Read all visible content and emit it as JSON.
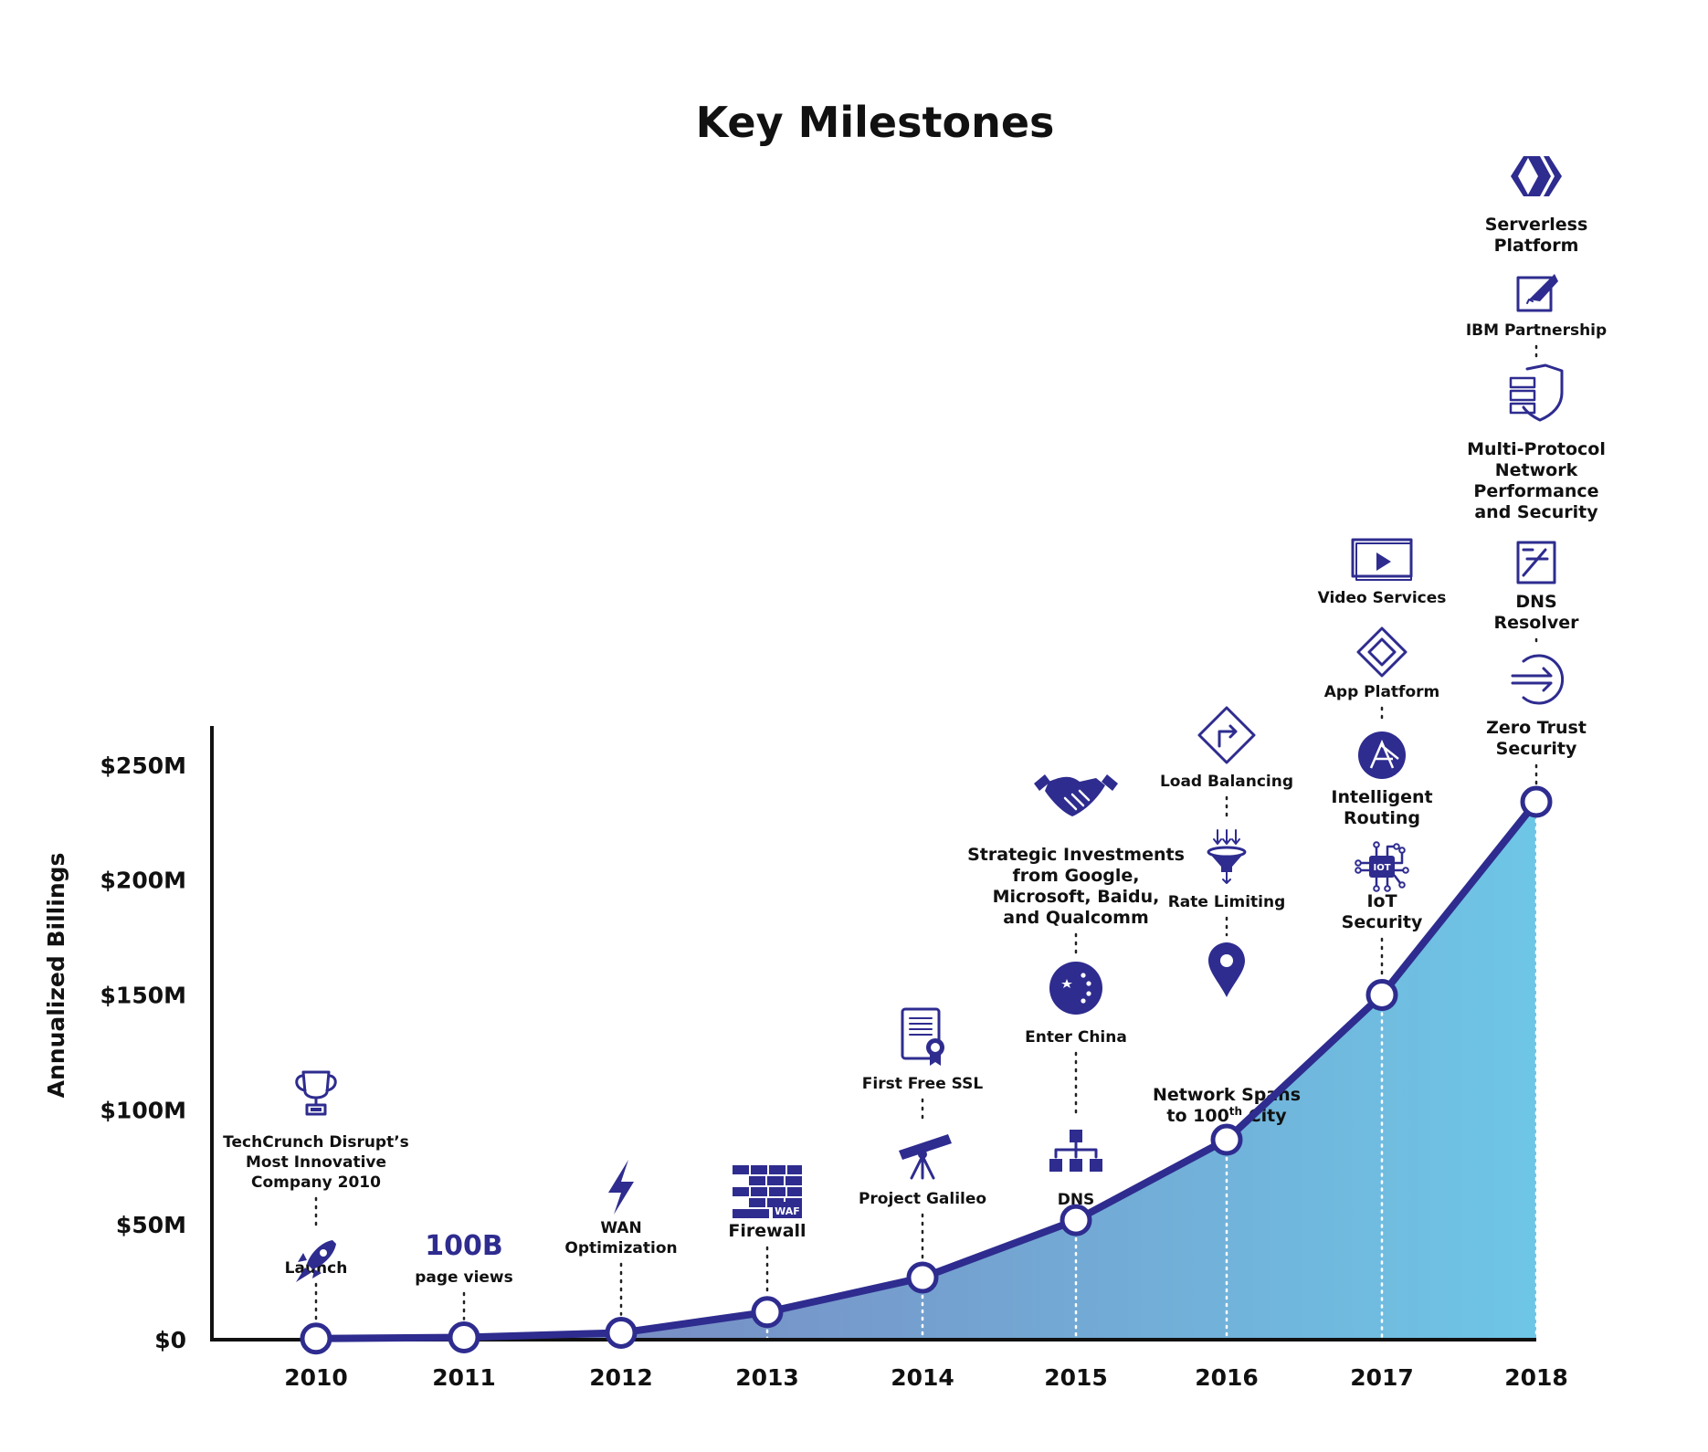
{
  "chart_data": {
    "type": "area",
    "title": "Key Milestones",
    "ylabel": "Annualized Billings",
    "xlabel": "",
    "x": [
      "2010",
      "2011",
      "2012",
      "2013",
      "2014",
      "2015",
      "2016",
      "2017",
      "2018"
    ],
    "y_tick_labels": [
      "$0",
      "$50M",
      "$100M",
      "$150M",
      "$200M",
      "$250M"
    ],
    "y_ticks": [
      0,
      50,
      100,
      150,
      200,
      250
    ],
    "ylim": [
      0,
      265
    ],
    "y_unit": "$M",
    "series": [
      {
        "values": [
          0.5,
          1,
          3,
          12,
          27,
          52,
          87,
          150,
          234
        ]
      }
    ],
    "grid": false,
    "legend": "none",
    "colors": {
      "line": "#2e2c8f",
      "area_start": "#7b7ab8",
      "area_end": "#6ec6e6",
      "icon": "#2e2c8f",
      "point_fill": "#ffffff"
    },
    "annotations": [
      {
        "year": "2010",
        "items": [
          {
            "icon": "rocket-icon",
            "label": "Launch"
          },
          {
            "icon": "trophy-icon",
            "label": "TechCrunch Disrupt’s\nMost Innovative\nCompany 2010"
          }
        ]
      },
      {
        "year": "2011",
        "items": [
          {
            "icon": "",
            "big": "100B",
            "label": "page views"
          }
        ]
      },
      {
        "year": "2012",
        "items": [
          {
            "icon": "lightning-icon",
            "label": "WAN\nOptimization"
          }
        ]
      },
      {
        "year": "2013",
        "items": [
          {
            "icon": "firewall-waf-icon",
            "label": "Firewall",
            "large": true
          }
        ]
      },
      {
        "year": "2014",
        "items": [
          {
            "icon": "telescope-icon",
            "label": "Project Galileo"
          },
          {
            "icon": "certificate-icon",
            "label": "First Free SSL"
          }
        ]
      },
      {
        "year": "2015",
        "items": [
          {
            "icon": "dns-hierarchy-icon",
            "label": "DNS"
          },
          {
            "icon": "china-flag-icon",
            "label": "Enter China"
          },
          {
            "icon": "handshake-icon",
            "label": "Strategic Investments\nfrom Google,\nMicrosoft, Baidu,\nand Qualcomm",
            "large": true
          }
        ]
      },
      {
        "year": "2016",
        "items": [
          {
            "icon": "map-pin-icon",
            "label": "Network Spans\nto 100th City",
            "large": true
          },
          {
            "icon": "funnel-icon",
            "label": "Rate Limiting"
          },
          {
            "icon": "load-balancing-icon",
            "label": "Load Balancing"
          }
        ]
      },
      {
        "year": "2017",
        "items": [
          {
            "icon": "iot-chip-icon",
            "label": "IoT\nSecurity",
            "large": true
          },
          {
            "icon": "routing-icon",
            "label": "Intelligent\nRouting",
            "large": true
          },
          {
            "icon": "app-platform-icon",
            "label": "App Platform"
          },
          {
            "icon": "video-icon",
            "label": "Video Services"
          }
        ]
      },
      {
        "year": "2018",
        "items": [
          {
            "icon": "zero-trust-icon",
            "label": "Zero Trust\nSecurity",
            "large": true
          },
          {
            "icon": "dns-resolver-icon",
            "label": "DNS\nResolver",
            "large": true
          },
          {
            "icon": "shield-servers-icon",
            "label": "Multi-Protocol\nNetwork\nPerformance\nand Security",
            "large": true
          },
          {
            "icon": "pen-icon",
            "label": "IBM Partnership"
          },
          {
            "icon": "serverless-icon",
            "label": "Serverless\nPlatform",
            "large": true
          }
        ]
      }
    ]
  }
}
